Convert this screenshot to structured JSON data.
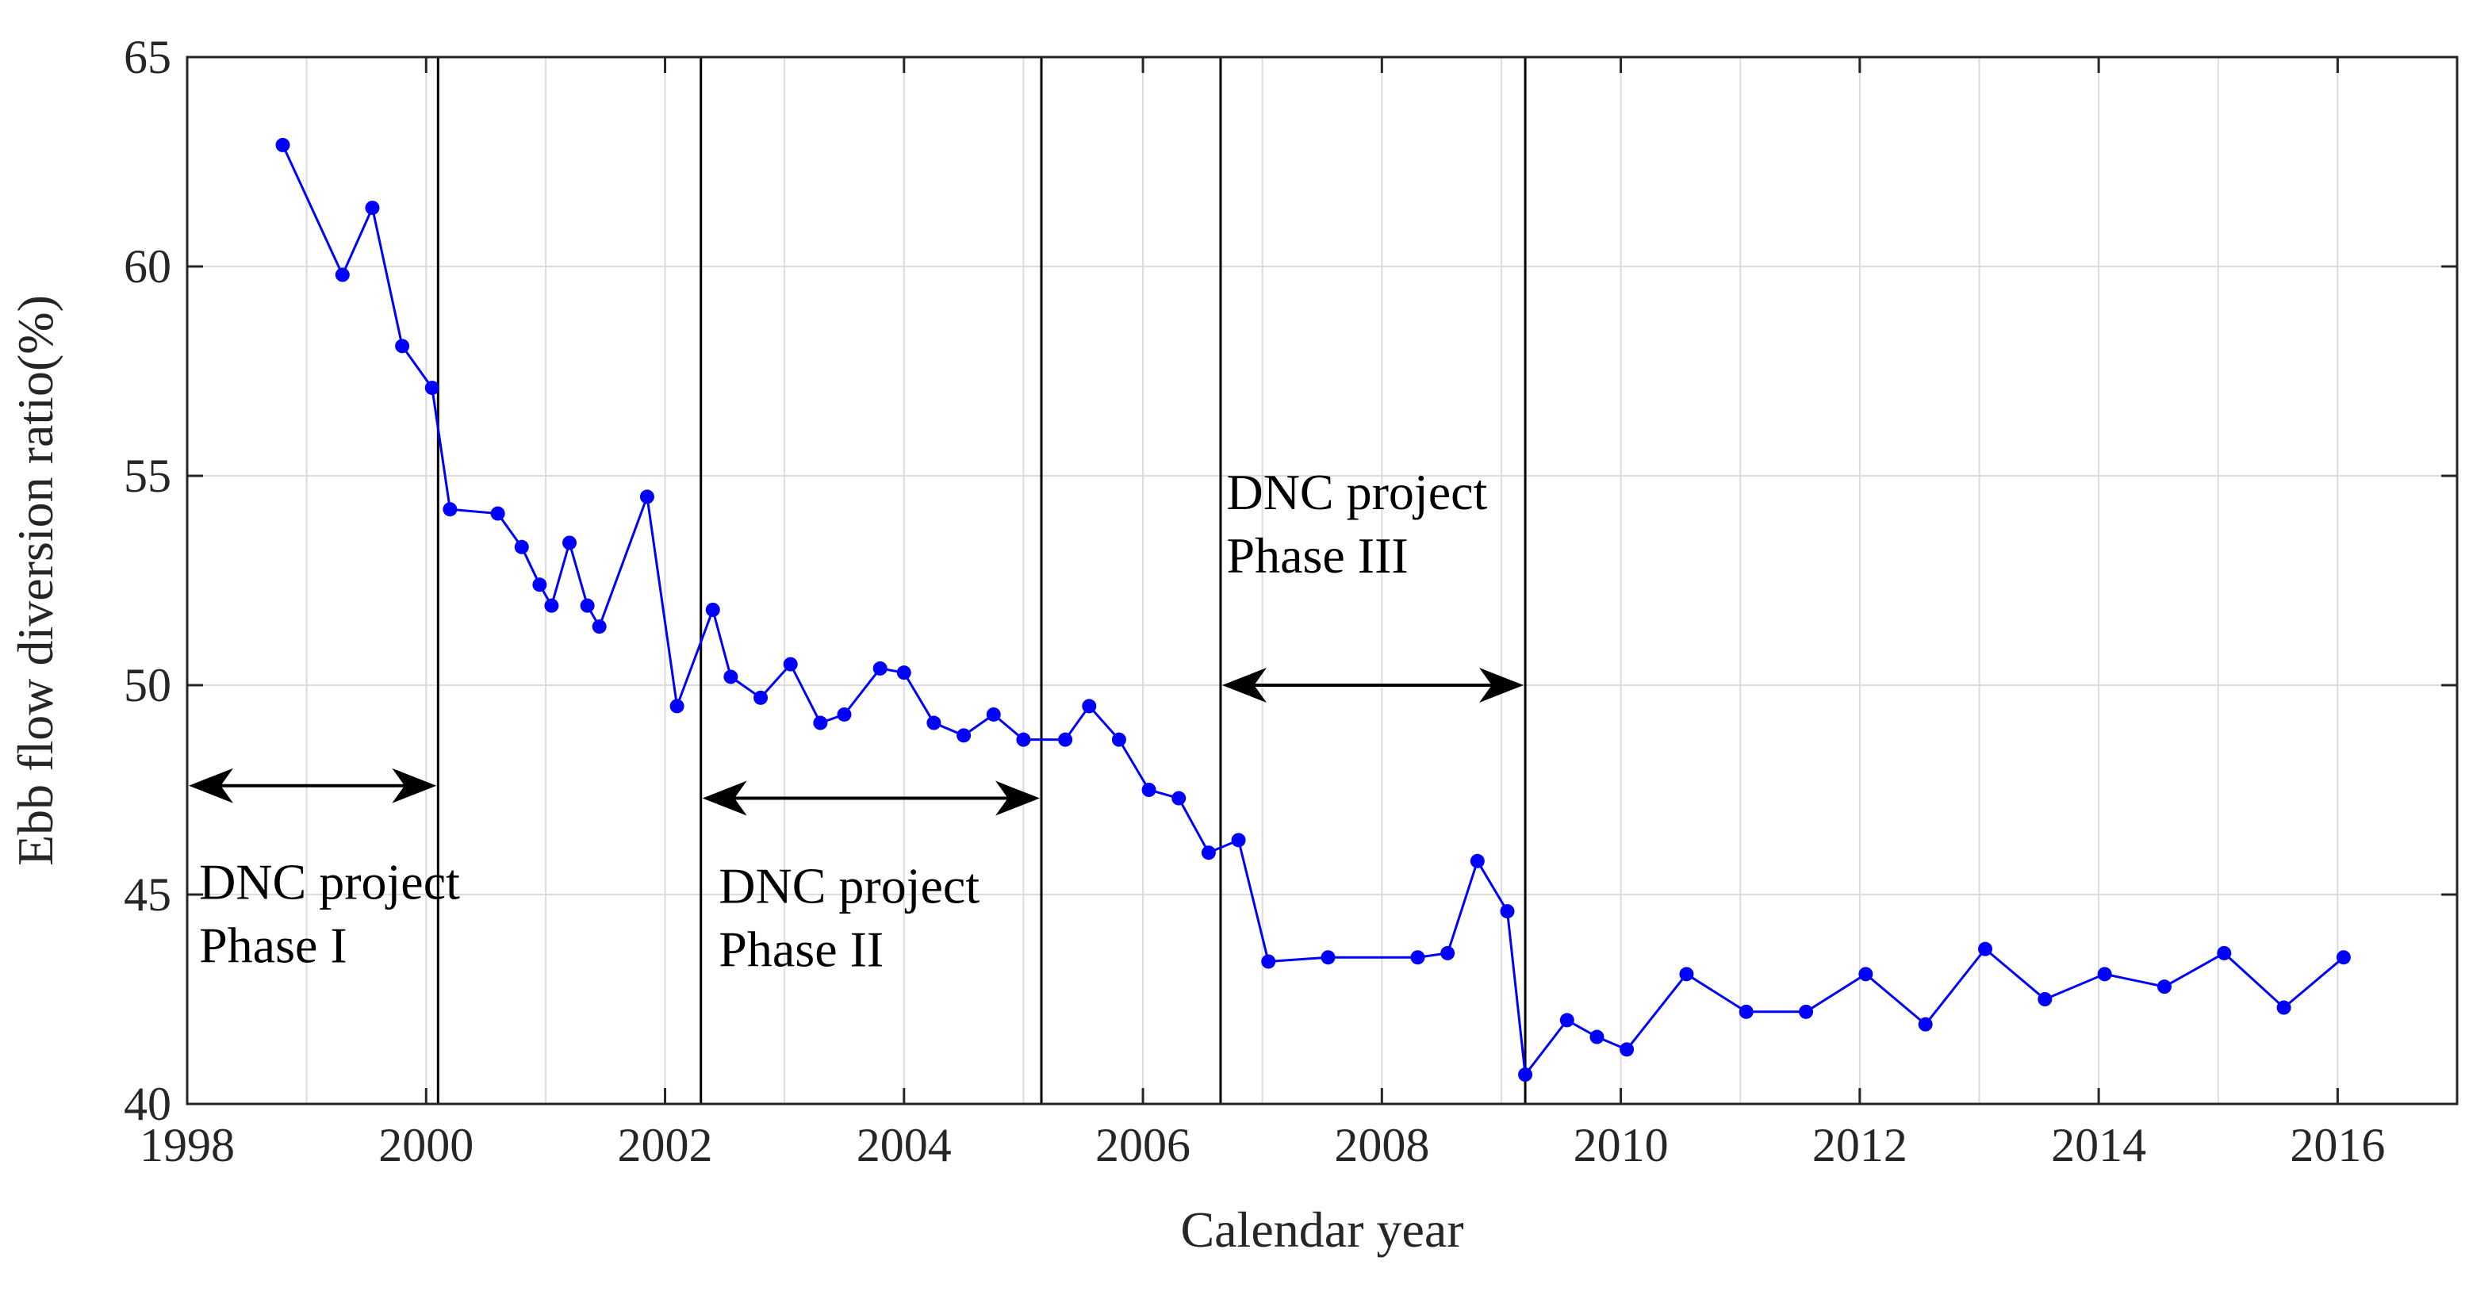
{
  "chart_data": {
    "type": "line",
    "title": "",
    "xlabel": "Calendar year",
    "ylabel": "Ebb flow diversion ratio(%)",
    "xlim": [
      1998,
      2017
    ],
    "ylim": [
      40,
      65
    ],
    "grid": true,
    "x_ticks": [
      1998,
      2000,
      2002,
      2004,
      2006,
      2008,
      2010,
      2012,
      2014,
      2016
    ],
    "y_ticks": [
      40,
      45,
      50,
      55,
      60,
      65
    ],
    "series_color": "#0000ff",
    "series": [
      {
        "name": "Ebb flow diversion ratio",
        "x": [
          1998.8,
          1999.3,
          1999.55,
          1999.8,
          2000.05,
          2000.2,
          2000.6,
          2000.8,
          2000.95,
          2001.05,
          2001.2,
          2001.35,
          2001.45,
          2001.85,
          2002.1,
          2002.4,
          2002.55,
          2002.8,
          2003.05,
          2003.3,
          2003.5,
          2003.8,
          2004.0,
          2004.25,
          2004.5,
          2004.75,
          2005.0,
          2005.35,
          2005.55,
          2005.8,
          2006.05,
          2006.3,
          2006.55,
          2006.8,
          2007.05,
          2007.55,
          2008.3,
          2008.55,
          2008.8,
          2009.05,
          2009.2,
          2009.55,
          2009.8,
          2010.05,
          2010.55,
          2011.05,
          2011.55,
          2012.05,
          2012.55,
          2013.05,
          2013.55,
          2014.05,
          2014.55,
          2015.05,
          2015.55,
          2016.05
        ],
        "y": [
          62.9,
          59.8,
          61.4,
          58.1,
          57.1,
          54.2,
          54.1,
          53.3,
          52.4,
          51.9,
          53.4,
          51.9,
          51.4,
          54.5,
          49.5,
          51.8,
          50.2,
          49.7,
          50.5,
          49.1,
          49.3,
          50.4,
          50.3,
          49.1,
          48.8,
          49.3,
          48.7,
          48.7,
          49.5,
          48.7,
          47.5,
          47.3,
          46.0,
          46.3,
          43.4,
          43.5,
          43.5,
          43.6,
          45.8,
          44.6,
          40.7,
          42.0,
          41.6,
          41.3,
          43.1,
          42.2,
          42.2,
          43.1,
          41.9,
          43.7,
          42.5,
          43.1,
          42.8,
          43.6,
          42.3,
          43.5
        ]
      }
    ],
    "phase_lines_year": [
      2000.1,
      2002.3,
      2005.15,
      2006.65,
      2009.2
    ],
    "annotations": [
      {
        "lines": [
          "DNC project",
          "Phase I"
        ],
        "arrow_from_year": 1998.0,
        "arrow_to_year": 2000.1,
        "arrow_y": 47.6,
        "label_year": 1998.1,
        "label_y": 44.9
      },
      {
        "lines": [
          "DNC project",
          "Phase II"
        ],
        "arrow_from_year": 2002.3,
        "arrow_to_year": 2005.15,
        "arrow_y": 47.3,
        "label_year": 2002.45,
        "label_y": 44.8
      },
      {
        "lines": [
          "DNC project",
          "Phase III"
        ],
        "arrow_from_year": 2006.65,
        "arrow_to_year": 2009.2,
        "arrow_y": 50.0,
        "label_year": 2006.7,
        "label_y": 54.2
      }
    ]
  }
}
